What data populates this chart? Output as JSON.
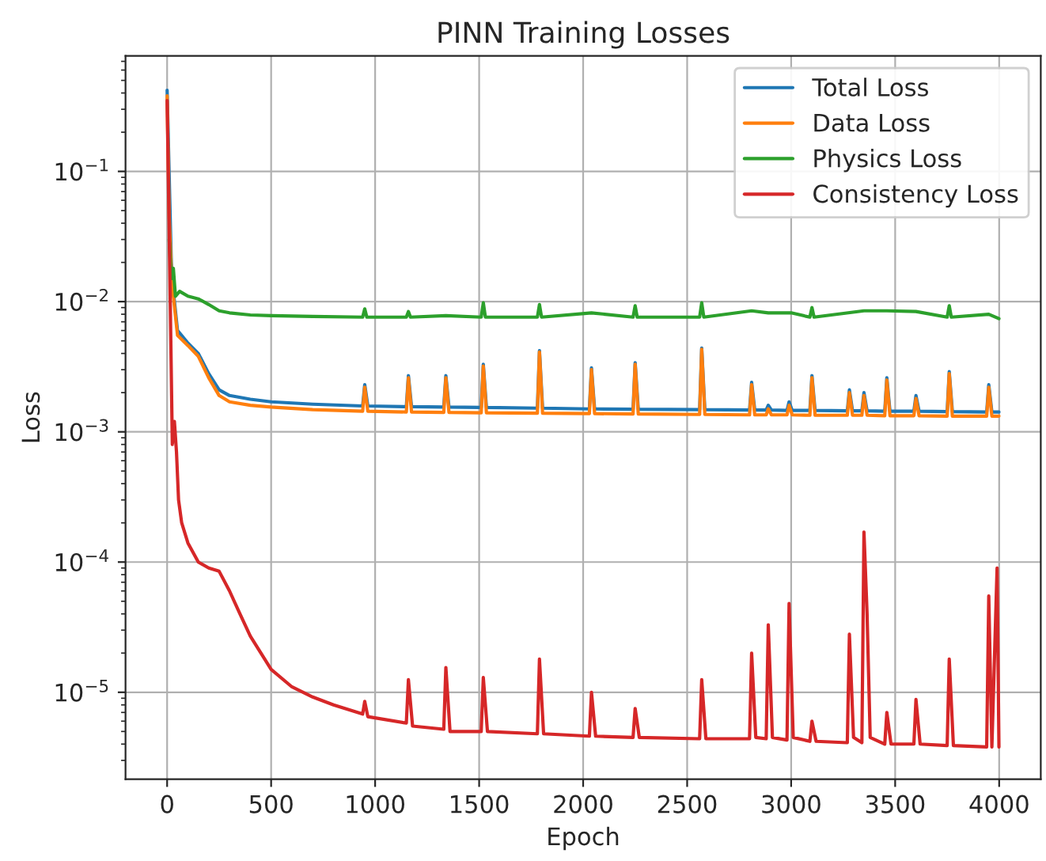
{
  "chart_data": {
    "type": "line",
    "title": "PINN Training Losses",
    "xlabel": "Epoch",
    "ylabel": "Loss",
    "log": "y",
    "grid": true,
    "legend": "top right",
    "xlim": [
      -200,
      4200
    ],
    "xticks": [
      0,
      500,
      1000,
      1500,
      2000,
      2500,
      3000,
      3500,
      4000
    ],
    "ylim": [
      2.15e-06,
      0.77
    ],
    "yticks": [
      {
        "value": 1e-05,
        "label": "10$^{−5}$"
      },
      {
        "value": 0.0001,
        "label": "10$^{−4}$"
      },
      {
        "value": 0.001,
        "label": "10$^{−3}$"
      },
      {
        "value": 0.01,
        "label": "10$^{−2}$"
      },
      {
        "value": 0.1,
        "label": "10$^{−1}$"
      }
    ],
    "series": [
      {
        "name": "Total Loss",
        "color": "#1f77b4",
        "x": [
          0,
          20,
          30,
          50,
          100,
          150,
          200,
          250,
          300,
          400,
          500,
          700,
          940,
          950,
          965,
          1150,
          1160,
          1175,
          1330,
          1340,
          1355,
          1510,
          1520,
          1535,
          1780,
          1790,
          1805,
          2030,
          2040,
          2055,
          2240,
          2250,
          2265,
          2560,
          2570,
          2585,
          2800,
          2810,
          2825,
          2880,
          2890,
          2905,
          2980,
          2990,
          3005,
          3090,
          3100,
          3115,
          3270,
          3280,
          3295,
          3340,
          3350,
          3365,
          3450,
          3460,
          3475,
          3590,
          3600,
          3615,
          3750,
          3760,
          3775,
          3940,
          3950,
          3965,
          3999
        ],
        "values": [
          0.42,
          0.02,
          0.012,
          0.006,
          0.0048,
          0.004,
          0.0028,
          0.0021,
          0.0019,
          0.00178,
          0.0017,
          0.00163,
          0.00158,
          0.0023,
          0.00158,
          0.00156,
          0.0027,
          0.00156,
          0.00155,
          0.0027,
          0.00155,
          0.00154,
          0.0033,
          0.00154,
          0.00152,
          0.0042,
          0.00152,
          0.0015,
          0.0031,
          0.0015,
          0.00149,
          0.0034,
          0.00149,
          0.00148,
          0.0044,
          0.00148,
          0.00147,
          0.0024,
          0.00147,
          0.00147,
          0.0016,
          0.00147,
          0.00146,
          0.0017,
          0.00146,
          0.00146,
          0.0027,
          0.00146,
          0.00145,
          0.0021,
          0.00145,
          0.00145,
          0.002,
          0.00145,
          0.00144,
          0.0026,
          0.00144,
          0.00144,
          0.0019,
          0.00144,
          0.00143,
          0.0029,
          0.00143,
          0.00142,
          0.0023,
          0.00142,
          0.00142
        ]
      },
      {
        "name": "Data Loss",
        "color": "#ff7f0e",
        "x": [
          0,
          10,
          20,
          30,
          50,
          100,
          150,
          200,
          250,
          300,
          400,
          500,
          700,
          940,
          950,
          965,
          1150,
          1160,
          1175,
          1330,
          1340,
          1355,
          1510,
          1520,
          1535,
          1780,
          1790,
          1805,
          2030,
          2040,
          2055,
          2240,
          2250,
          2265,
          2560,
          2570,
          2585,
          2800,
          2810,
          2825,
          2880,
          2890,
          2905,
          2980,
          2990,
          3005,
          3090,
          3100,
          3115,
          3270,
          3280,
          3295,
          3340,
          3350,
          3365,
          3450,
          3460,
          3475,
          3590,
          3600,
          3615,
          3750,
          3760,
          3775,
          3940,
          3950,
          3965,
          3999
        ],
        "values": [
          0.38,
          0.045,
          0.018,
          0.011,
          0.0055,
          0.0046,
          0.0038,
          0.0026,
          0.0019,
          0.0017,
          0.0016,
          0.00155,
          0.00148,
          0.00144,
          0.0022,
          0.00144,
          0.00142,
          0.0026,
          0.00142,
          0.00141,
          0.0026,
          0.00141,
          0.0014,
          0.0032,
          0.0014,
          0.00139,
          0.0041,
          0.00139,
          0.00138,
          0.003,
          0.00138,
          0.00137,
          0.0033,
          0.00137,
          0.00136,
          0.0043,
          0.00136,
          0.00135,
          0.0023,
          0.00135,
          0.00135,
          0.0015,
          0.00135,
          0.00135,
          0.0016,
          0.00135,
          0.00134,
          0.0026,
          0.00134,
          0.00134,
          0.002,
          0.00134,
          0.00134,
          0.0019,
          0.00134,
          0.00133,
          0.0025,
          0.00133,
          0.00133,
          0.0018,
          0.00133,
          0.00132,
          0.0028,
          0.00132,
          0.00132,
          0.0022,
          0.00132,
          0.00132
        ]
      },
      {
        "name": "Physics Loss",
        "color": "#2ca02c",
        "x": [
          10,
          20,
          30,
          40,
          60,
          100,
          150,
          200,
          250,
          300,
          400,
          500,
          700,
          940,
          950,
          960,
          1150,
          1160,
          1170,
          1340,
          1510,
          1520,
          1530,
          1780,
          1790,
          1800,
          2040,
          2240,
          2250,
          2260,
          2560,
          2570,
          2580,
          2810,
          2890,
          3000,
          3090,
          3100,
          3110,
          3350,
          3460,
          3600,
          3750,
          3760,
          3770,
          3950,
          3999
        ],
        "values": [
          0.03,
          0.015,
          0.018,
          0.011,
          0.012,
          0.011,
          0.0105,
          0.0095,
          0.0085,
          0.0082,
          0.0079,
          0.0078,
          0.0077,
          0.0076,
          0.0088,
          0.0076,
          0.0076,
          0.0084,
          0.0076,
          0.0078,
          0.0076,
          0.0098,
          0.0076,
          0.0076,
          0.0095,
          0.0076,
          0.0082,
          0.0076,
          0.0093,
          0.0076,
          0.0076,
          0.0098,
          0.0076,
          0.0085,
          0.0082,
          0.0082,
          0.0076,
          0.009,
          0.0076,
          0.0085,
          0.0085,
          0.0084,
          0.0076,
          0.0093,
          0.0076,
          0.008,
          0.0074
        ]
      },
      {
        "name": "Consistency Loss",
        "color": "#d62728",
        "x": [
          0,
          15,
          25,
          35,
          45,
          55,
          70,
          100,
          150,
          200,
          250,
          300,
          350,
          400,
          500,
          600,
          700,
          800,
          940,
          950,
          965,
          1150,
          1160,
          1180,
          1330,
          1340,
          1360,
          1510,
          1520,
          1540,
          1780,
          1790,
          1810,
          2030,
          2040,
          2060,
          2240,
          2250,
          2270,
          2560,
          2570,
          2590,
          2800,
          2810,
          2830,
          2880,
          2890,
          2910,
          2980,
          2990,
          3010,
          3090,
          3100,
          3120,
          3270,
          3280,
          3300,
          3340,
          3350,
          3365,
          3380,
          3450,
          3460,
          3480,
          3590,
          3600,
          3620,
          3750,
          3760,
          3780,
          3940,
          3950,
          3965,
          3990,
          3999
        ],
        "values": [
          0.35,
          0.01,
          0.0008,
          0.0012,
          0.0007,
          0.0003,
          0.0002,
          0.00014,
          0.0001,
          9e-05,
          8.5e-05,
          6e-05,
          4e-05,
          2.7e-05,
          1.5e-05,
          1.1e-05,
          9.2e-06,
          8e-06,
          6.8e-06,
          8.5e-06,
          6.5e-06,
          5.8e-06,
          1.25e-05,
          5.5e-06,
          5.2e-06,
          1.55e-05,
          5e-06,
          5e-06,
          1.3e-05,
          5e-06,
          4.8e-06,
          1.8e-05,
          4.8e-06,
          4.6e-06,
          1e-05,
          4.6e-06,
          4.5e-06,
          7.5e-06,
          4.5e-06,
          4.4e-06,
          1.25e-05,
          4.4e-06,
          4.4e-06,
          2e-05,
          4.5e-06,
          4.4e-06,
          3.3e-05,
          4.5e-06,
          4.3e-06,
          4.8e-05,
          4.5e-06,
          4.2e-06,
          6e-06,
          4.2e-06,
          4.1e-06,
          2.8e-05,
          4.5e-06,
          4.1e-06,
          0.00017,
          4e-05,
          4.5e-06,
          4e-06,
          7e-06,
          4e-06,
          4e-06,
          8.8e-06,
          4e-06,
          3.9e-06,
          1.8e-05,
          3.9e-06,
          3.8e-06,
          5.5e-05,
          3.8e-06,
          9e-05,
          3.8e-06
        ]
      }
    ]
  }
}
